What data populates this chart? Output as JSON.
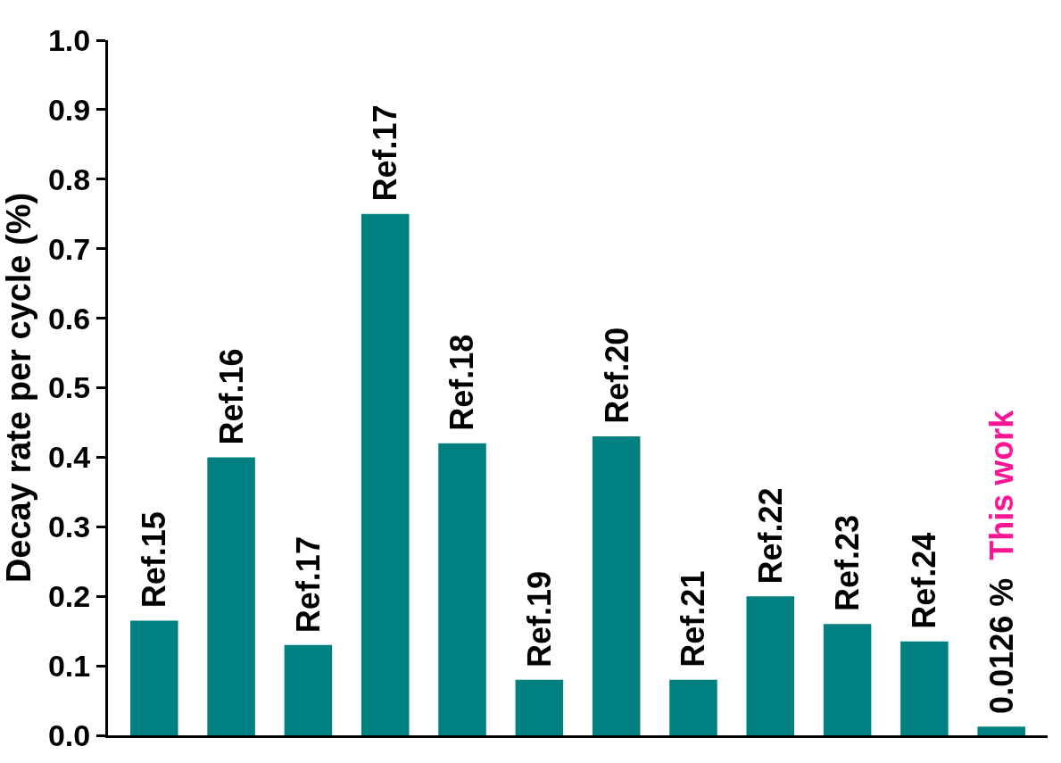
{
  "chart_data": {
    "type": "bar",
    "ylabel": "Decay rate per cycle (%)",
    "categories": [
      "Ref.15",
      "Ref.16",
      "Ref.17",
      "Ref.17",
      "Ref.18",
      "Ref.19",
      "Ref.20",
      "Ref.21",
      "Ref.22",
      "Ref.23",
      "Ref.24",
      "This work"
    ],
    "values": [
      0.165,
      0.4,
      0.13,
      0.75,
      0.42,
      0.08,
      0.43,
      0.08,
      0.2,
      0.16,
      0.135,
      0.0126
    ],
    "value_labels": [
      null,
      null,
      null,
      null,
      null,
      null,
      null,
      null,
      null,
      null,
      null,
      "0.0126 %"
    ],
    "color": "#008080",
    "ylim": [
      0,
      1.0
    ],
    "yticks": [
      {
        "value": 0,
        "label": "0.0"
      },
      0.1,
      0.2,
      0.3,
      0.4,
      0.5,
      0.6,
      0.7,
      0.8,
      0.9,
      {
        "value": 1.0,
        "label": "1.0"
      }
    ],
    "tick_labels": "y"
  }
}
